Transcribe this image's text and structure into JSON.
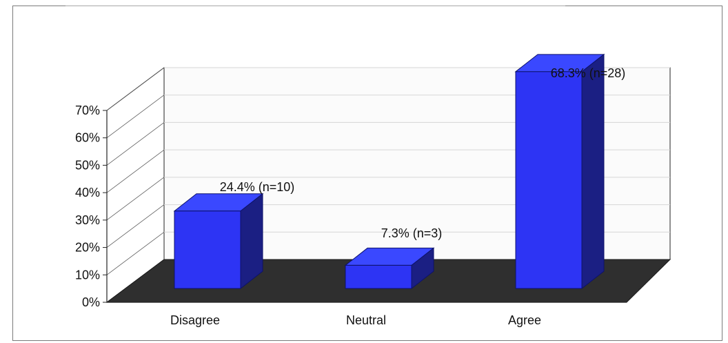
{
  "chart_data": {
    "type": "bar",
    "categories": [
      "Disagree",
      "Neutral",
      "Agree"
    ],
    "values": [
      24.4,
      7.3,
      68.3
    ],
    "labels": [
      "24.4% (n=10)",
      "7.3% (n=3)",
      "68.3% (n=28)"
    ],
    "y_ticks": [
      "0%",
      "10%",
      "20%",
      "30%",
      "40%",
      "50%",
      "60%",
      "70%"
    ],
    "ylim": [
      0,
      70
    ],
    "title": "",
    "xlabel": "",
    "ylabel": "",
    "grid": true,
    "legend": "none",
    "colors": {
      "bar": "#2d34f4",
      "bar_side": "#1b1f83",
      "bar_top": "#3a48ff",
      "floor": "#2f2f2f",
      "axis": "#222222",
      "grid": "#d6d6d6"
    }
  }
}
